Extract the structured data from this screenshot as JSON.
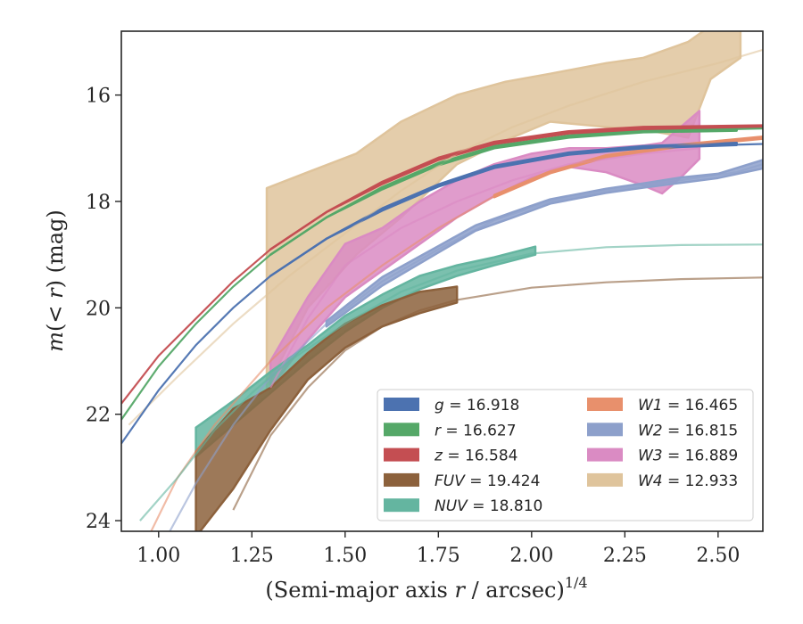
{
  "chart_data": {
    "type": "line",
    "xlabel": "(Semi-major axis r / arcsec)",
    "xlabel_parts": {
      "pre": "(Semi-major axis ",
      "var": "r",
      "post": " / arcsec)",
      "sup": "1/4"
    },
    "ylabel_parts": {
      "m": "m",
      "open": "(< ",
      "r": "r",
      "close": ") (mag)"
    },
    "xlim": [
      0.9,
      2.62
    ],
    "ylim": [
      24.2,
      14.8
    ],
    "y_inverted": true,
    "grid": false,
    "legend_position": "lower-right",
    "x_ticks": [
      1.0,
      1.25,
      1.5,
      1.75,
      2.0,
      2.25,
      2.5
    ],
    "x_tick_labels": [
      "1.00",
      "1.25",
      "1.50",
      "1.75",
      "2.00",
      "2.25",
      "2.50"
    ],
    "y_ticks": [
      16,
      18,
      20,
      22,
      24
    ],
    "y_tick_labels": [
      "16",
      "18",
      "20",
      "22",
      "24"
    ],
    "series": [
      {
        "key": "g",
        "name": "g",
        "value": "16.918",
        "color": "#4c72b0",
        "model": [
          [
            0.9,
            22.55
          ],
          [
            1.0,
            21.55
          ],
          [
            1.1,
            20.7
          ],
          [
            1.2,
            20.0
          ],
          [
            1.3,
            19.4
          ],
          [
            1.45,
            18.7
          ],
          [
            1.6,
            18.15
          ],
          [
            1.75,
            17.7
          ],
          [
            1.9,
            17.35
          ],
          [
            2.1,
            17.1
          ],
          [
            2.3,
            16.98
          ],
          [
            2.62,
            16.92
          ]
        ],
        "band": [
          [
            1.3,
            19.4,
            19.4
          ],
          [
            1.45,
            18.7,
            18.7
          ],
          [
            1.6,
            18.13,
            18.17
          ],
          [
            1.75,
            17.68,
            17.72
          ],
          [
            1.9,
            17.33,
            17.37
          ],
          [
            2.1,
            17.08,
            17.12
          ],
          [
            2.3,
            16.96,
            17.0
          ],
          [
            2.55,
            16.9,
            16.94
          ]
        ]
      },
      {
        "key": "r",
        "name": "r",
        "value": "16.627",
        "color": "#55a868",
        "model": [
          [
            0.9,
            22.1
          ],
          [
            1.0,
            21.1
          ],
          [
            1.1,
            20.3
          ],
          [
            1.2,
            19.6
          ],
          [
            1.3,
            19.0
          ],
          [
            1.45,
            18.3
          ],
          [
            1.6,
            17.75
          ],
          [
            1.75,
            17.3
          ],
          [
            1.9,
            16.98
          ],
          [
            2.1,
            16.78
          ],
          [
            2.3,
            16.68
          ],
          [
            2.62,
            16.63
          ]
        ],
        "band": [
          [
            1.3,
            19.0,
            19.0
          ],
          [
            1.45,
            18.3,
            18.3
          ],
          [
            1.6,
            17.73,
            17.77
          ],
          [
            1.75,
            17.28,
            17.32
          ],
          [
            1.9,
            16.96,
            17.0
          ],
          [
            2.1,
            16.76,
            16.8
          ],
          [
            2.3,
            16.66,
            16.7
          ],
          [
            2.55,
            16.63,
            16.67
          ]
        ]
      },
      {
        "key": "z",
        "name": "z",
        "value": "16.584",
        "color": "#c44e52",
        "model": [
          [
            0.9,
            21.8
          ],
          [
            1.0,
            20.9
          ],
          [
            1.1,
            20.2
          ],
          [
            1.2,
            19.5
          ],
          [
            1.3,
            18.9
          ],
          [
            1.45,
            18.2
          ],
          [
            1.6,
            17.65
          ],
          [
            1.75,
            17.2
          ],
          [
            1.9,
            16.9
          ],
          [
            2.1,
            16.7
          ],
          [
            2.3,
            16.62
          ],
          [
            2.62,
            16.58
          ]
        ],
        "band": [
          [
            1.3,
            18.9,
            18.9
          ],
          [
            1.45,
            18.2,
            18.2
          ],
          [
            1.6,
            17.63,
            17.67
          ],
          [
            1.75,
            17.18,
            17.22
          ],
          [
            1.9,
            16.88,
            16.92
          ],
          [
            2.1,
            16.68,
            16.72
          ],
          [
            2.3,
            16.6,
            16.64
          ],
          [
            2.62,
            16.57,
            16.61
          ]
        ]
      },
      {
        "key": "fuv",
        "name": "FUV",
        "value": "19.424",
        "color": "#8c613c",
        "model": [
          [
            1.2,
            23.8
          ],
          [
            1.3,
            22.4
          ],
          [
            1.4,
            21.5
          ],
          [
            1.5,
            20.8
          ],
          [
            1.6,
            20.35
          ],
          [
            1.7,
            20.05
          ],
          [
            1.8,
            19.85
          ],
          [
            2.0,
            19.62
          ],
          [
            2.2,
            19.52
          ],
          [
            2.4,
            19.46
          ],
          [
            2.62,
            19.43
          ]
        ],
        "band": [
          [
            1.1,
            22.7,
            24.3
          ],
          [
            1.2,
            21.9,
            23.4
          ],
          [
            1.3,
            21.5,
            22.3
          ],
          [
            1.4,
            20.85,
            21.35
          ],
          [
            1.5,
            20.3,
            20.75
          ],
          [
            1.6,
            19.95,
            20.35
          ],
          [
            1.7,
            19.7,
            20.1
          ],
          [
            1.8,
            19.6,
            19.9
          ]
        ]
      },
      {
        "key": "nuv",
        "name": "NUV",
        "value": "18.810",
        "color": "#64b5a0",
        "model": [
          [
            0.95,
            24.0
          ],
          [
            1.05,
            23.2
          ],
          [
            1.15,
            22.3
          ],
          [
            1.25,
            21.6
          ],
          [
            1.35,
            21.0
          ],
          [
            1.5,
            20.3
          ],
          [
            1.65,
            19.7
          ],
          [
            1.8,
            19.3
          ],
          [
            2.0,
            18.98
          ],
          [
            2.2,
            18.86
          ],
          [
            2.4,
            18.82
          ],
          [
            2.62,
            18.81
          ]
        ],
        "band": [
          [
            1.1,
            22.25,
            22.8
          ],
          [
            1.2,
            21.75,
            22.2
          ],
          [
            1.3,
            21.2,
            21.6
          ],
          [
            1.4,
            20.7,
            21.0
          ],
          [
            1.5,
            20.15,
            20.45
          ],
          [
            1.6,
            19.75,
            20.0
          ],
          [
            1.7,
            19.4,
            19.65
          ],
          [
            1.8,
            19.2,
            19.4
          ],
          [
            1.9,
            19.05,
            19.2
          ],
          [
            2.01,
            18.85,
            19.0
          ]
        ]
      },
      {
        "key": "w1",
        "name": "W1",
        "value": "16.465",
        "color": "#e8906c",
        "model": [
          [
            0.98,
            24.2
          ],
          [
            1.05,
            23.2
          ],
          [
            1.15,
            22.2
          ],
          [
            1.3,
            21.0
          ],
          [
            1.45,
            20.0
          ],
          [
            1.6,
            19.2
          ],
          [
            1.75,
            18.5
          ],
          [
            1.9,
            17.9
          ],
          [
            2.05,
            17.45
          ],
          [
            2.2,
            17.15
          ],
          [
            2.4,
            16.95
          ],
          [
            2.62,
            16.8
          ]
        ],
        "band": [
          [
            1.9,
            17.88,
            17.92
          ],
          [
            2.05,
            17.43,
            17.47
          ],
          [
            2.2,
            17.13,
            17.17
          ],
          [
            2.4,
            16.93,
            16.97
          ],
          [
            2.62,
            16.78,
            16.82
          ]
        ]
      },
      {
        "key": "w2",
        "name": "W2",
        "value": "16.815",
        "color": "#8da0cb",
        "model": [
          [
            1.03,
            24.2
          ],
          [
            1.1,
            23.3
          ],
          [
            1.2,
            22.2
          ],
          [
            1.3,
            21.3
          ],
          [
            1.45,
            20.3
          ],
          [
            1.6,
            19.5
          ],
          [
            1.75,
            18.9
          ],
          [
            1.9,
            18.35
          ],
          [
            2.05,
            18.0
          ],
          [
            2.2,
            17.8
          ],
          [
            2.4,
            17.6
          ],
          [
            2.55,
            17.45
          ],
          [
            2.62,
            17.3
          ]
        ],
        "band": [
          [
            1.45,
            20.25,
            20.35
          ],
          [
            1.6,
            19.42,
            19.58
          ],
          [
            1.75,
            18.84,
            18.96
          ],
          [
            1.85,
            18.45,
            18.55
          ],
          [
            1.95,
            18.2,
            18.3
          ],
          [
            2.05,
            17.96,
            18.04
          ],
          [
            2.2,
            17.76,
            17.84
          ],
          [
            2.3,
            17.66,
            17.74
          ],
          [
            2.4,
            17.55,
            17.65
          ],
          [
            2.5,
            17.48,
            17.56
          ],
          [
            2.62,
            17.22,
            17.38
          ]
        ]
      },
      {
        "key": "w3",
        "name": "W3",
        "value": "16.889",
        "color": "#da8bc3",
        "model": [
          [
            1.3,
            21.5
          ],
          [
            1.4,
            20.2
          ],
          [
            1.5,
            19.2
          ],
          [
            1.65,
            18.5
          ],
          [
            1.8,
            18.0
          ],
          [
            1.95,
            17.6
          ],
          [
            2.1,
            17.3
          ],
          [
            2.3,
            17.1
          ],
          [
            2.45,
            17.0
          ]
        ],
        "band": [
          [
            1.3,
            21.0,
            21.5
          ],
          [
            1.4,
            19.8,
            20.6
          ],
          [
            1.5,
            18.8,
            19.8
          ],
          [
            1.6,
            18.5,
            19.3
          ],
          [
            1.7,
            18.0,
            18.8
          ],
          [
            1.8,
            17.6,
            18.3
          ],
          [
            1.9,
            17.3,
            17.9
          ],
          [
            2.0,
            17.1,
            17.55
          ],
          [
            2.1,
            17.0,
            17.35
          ],
          [
            2.2,
            17.0,
            17.45
          ],
          [
            2.3,
            16.95,
            17.7
          ],
          [
            2.35,
            16.9,
            17.85
          ],
          [
            2.4,
            16.6,
            17.55
          ],
          [
            2.45,
            16.3,
            17.2
          ]
        ]
      },
      {
        "key": "w4",
        "name": "W4",
        "value": "12.933",
        "color": "#dfc49c",
        "model": [
          [
            0.92,
            22.2
          ],
          [
            1.05,
            21.3
          ],
          [
            1.2,
            20.3
          ],
          [
            1.35,
            19.4
          ],
          [
            1.5,
            18.6
          ],
          [
            1.65,
            17.8
          ],
          [
            1.8,
            17.1
          ],
          [
            1.95,
            16.6
          ],
          [
            2.1,
            16.2
          ],
          [
            2.3,
            15.75
          ],
          [
            2.5,
            15.4
          ],
          [
            2.62,
            15.15
          ]
        ],
        "band": [
          [
            1.29,
            17.75,
            21.5
          ],
          [
            1.4,
            17.45,
            20.0
          ],
          [
            1.53,
            17.1,
            19.0
          ],
          [
            1.65,
            16.5,
            18.3
          ],
          [
            1.8,
            16.0,
            17.3
          ],
          [
            1.93,
            15.75,
            16.85
          ],
          [
            2.05,
            15.6,
            16.5
          ],
          [
            2.2,
            15.4,
            16.6
          ],
          [
            2.3,
            15.3,
            16.65
          ],
          [
            2.42,
            15.0,
            16.8
          ],
          [
            2.48,
            14.7,
            15.7
          ],
          [
            2.56,
            14.5,
            15.3
          ]
        ]
      }
    ]
  }
}
